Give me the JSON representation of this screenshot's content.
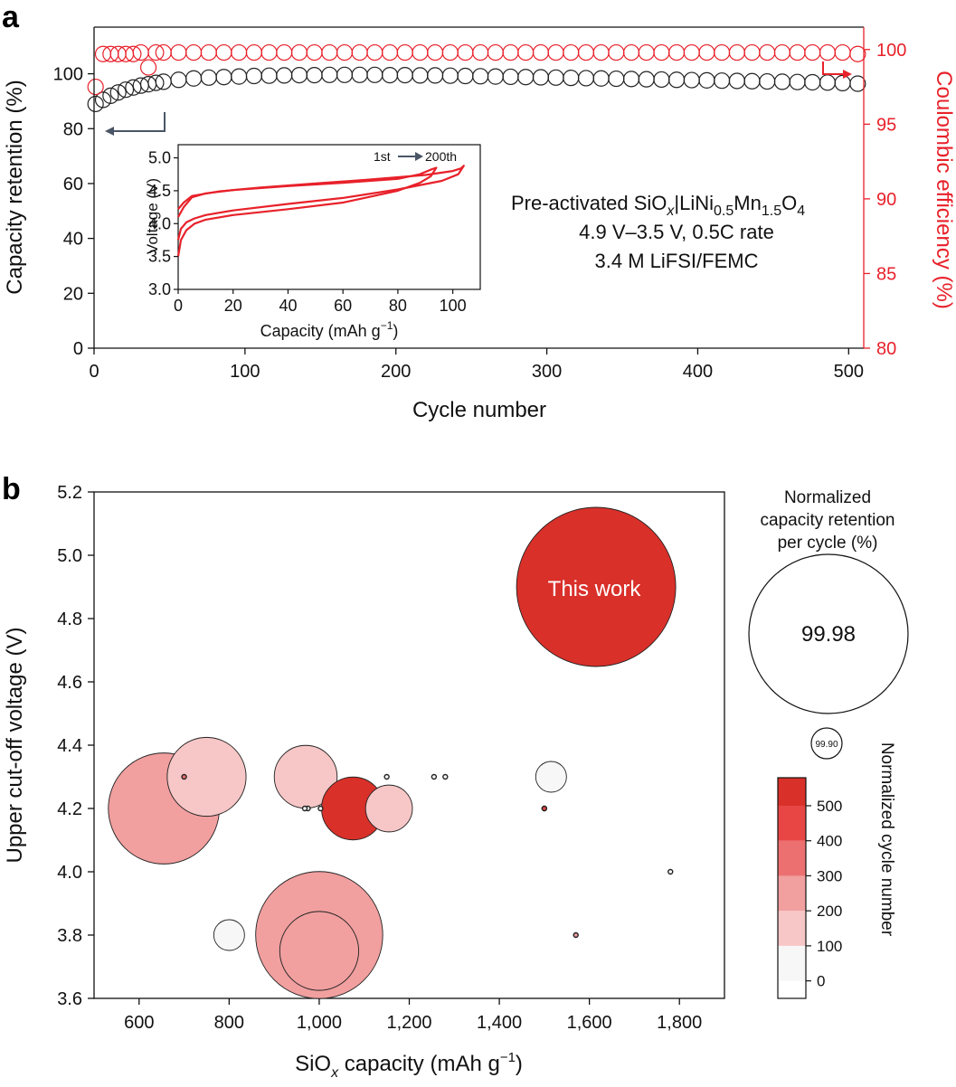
{
  "chart_data": [
    {
      "panel_label": "a",
      "type": "scatter",
      "xlabel": "Cycle number",
      "ylabel": "Capacity retention (%)",
      "y2label": "Coulombic efficiency (%)",
      "xlim": [
        0,
        510
      ],
      "ylim": [
        0,
        117
      ],
      "y2lim": [
        80,
        101.5
      ],
      "xticks": [
        "0",
        "100",
        "200",
        "300",
        "400",
        "500"
      ],
      "yticks": [
        "0",
        "20",
        "40",
        "60",
        "80",
        "100"
      ],
      "y2ticks": [
        "80",
        "85",
        "90",
        "95",
        "100"
      ],
      "annotation_lines": [
        "Pre-activated SiO",
        "x",
        "|LiNi",
        "0.5",
        "Mn",
        "1.5",
        "O",
        "4",
        "4.9 V–3.5 V, 0.5C rate",
        "3.4 M LiFSI/FEMC"
      ],
      "series": [
        {
          "axis": "left",
          "color": "#222222",
          "x": [
            1,
            6,
            11,
            16,
            21,
            26,
            31,
            36,
            41,
            46,
            56,
            66,
            76,
            86,
            96,
            106,
            116,
            126,
            136,
            146,
            156,
            166,
            176,
            186,
            196,
            206,
            216,
            226,
            236,
            246,
            256,
            266,
            276,
            286,
            296,
            306,
            316,
            326,
            336,
            346,
            356,
            366,
            376,
            386,
            396,
            406,
            416,
            426,
            436,
            446,
            456,
            466,
            476,
            486,
            496,
            506
          ],
          "y": [
            89,
            90.5,
            92,
            93.2,
            94.2,
            95,
            95.7,
            96.2,
            96.7,
            97.1,
            97.8,
            98.3,
            98.6,
            98.8,
            99,
            99.2,
            99.3,
            99.4,
            99.5,
            99.5,
            99.6,
            99.6,
            99.6,
            99.6,
            99.5,
            99.5,
            99.4,
            99.4,
            99.3,
            99.2,
            99.1,
            99,
            98.9,
            98.8,
            98.7,
            98.6,
            98.5,
            98.4,
            98.3,
            98.2,
            98.1,
            98,
            97.9,
            97.8,
            97.7,
            97.6,
            97.5,
            97.4,
            97.3,
            97.2,
            97.1,
            97,
            96.9,
            96.8,
            96.6,
            96.4
          ]
        },
        {
          "axis": "right",
          "color": "#e8212a",
          "x": [
            1,
            6,
            11,
            16,
            21,
            26,
            31,
            36,
            41,
            46,
            56,
            66,
            76,
            86,
            96,
            106,
            116,
            126,
            136,
            146,
            156,
            166,
            176,
            186,
            196,
            206,
            216,
            226,
            236,
            246,
            256,
            266,
            276,
            286,
            296,
            306,
            316,
            326,
            336,
            346,
            356,
            366,
            376,
            386,
            396,
            406,
            416,
            426,
            436,
            446,
            456,
            466,
            476,
            486,
            496,
            506
          ],
          "y": [
            97.5,
            99.7,
            99.7,
            99.7,
            99.7,
            99.7,
            99.8,
            98.8,
            99.8,
            99.8,
            99.8,
            99.8,
            99.8,
            99.8,
            99.8,
            99.8,
            99.8,
            99.8,
            99.8,
            99.8,
            99.8,
            99.8,
            99.8,
            99.8,
            99.8,
            99.8,
            99.8,
            99.8,
            99.8,
            99.8,
            99.8,
            99.8,
            99.8,
            99.8,
            99.8,
            99.8,
            99.8,
            99.8,
            99.8,
            99.8,
            99.8,
            99.8,
            99.8,
            99.8,
            99.8,
            99.8,
            99.8,
            99.8,
            99.8,
            99.8,
            99.8,
            99.8,
            99.8,
            99.8,
            99.8,
            99.7
          ]
        }
      ],
      "inset": {
        "type": "line",
        "xlabel": "Capacity (mAh g",
        "xlabel_sup": "−1",
        "xlabel_end": ")",
        "ylabel": "Voltage (V)",
        "xlim": [
          0,
          110
        ],
        "ylim": [
          3.0,
          5.2
        ],
        "xticks": [
          "0",
          "20",
          "40",
          "60",
          "80",
          "100"
        ],
        "yticks": [
          "3.0",
          "3.5",
          "4.0",
          "4.5",
          "5.0"
        ],
        "legend_start": "1st",
        "legend_end": "200th",
        "color": "#e8212a",
        "curves": [
          {
            "charge_x": [
              0,
              1,
              3,
              6,
              10,
              20,
              40,
              60,
              80,
              88,
              92,
              94
            ],
            "charge_y": [
              3.5,
              3.75,
              3.9,
              4.0,
              4.06,
              4.13,
              4.22,
              4.32,
              4.5,
              4.62,
              4.72,
              4.85
            ],
            "discharge_x": [
              94,
              92,
              88,
              80,
              60,
              40,
              20,
              10,
              5,
              2,
              0
            ],
            "discharge_y": [
              4.85,
              4.82,
              4.75,
              4.68,
              4.62,
              4.57,
              4.51,
              4.46,
              4.4,
              4.25,
              4.1
            ]
          },
          {
            "charge_x": [
              0,
              1,
              3,
              6,
              10,
              20,
              40,
              60,
              80,
              96,
              102,
              104
            ],
            "charge_y": [
              3.75,
              3.92,
              4.02,
              4.08,
              4.13,
              4.2,
              4.3,
              4.39,
              4.52,
              4.65,
              4.75,
              4.88
            ],
            "discharge_x": [
              104,
              103,
              100,
              90,
              70,
              50,
              30,
              15,
              5,
              2,
              0
            ],
            "discharge_y": [
              4.88,
              4.84,
              4.8,
              4.74,
              4.67,
              4.61,
              4.55,
              4.49,
              4.42,
              4.32,
              4.22
            ]
          }
        ]
      }
    },
    {
      "panel_label": "b",
      "type": "scatter",
      "xlabel": "SiO",
      "xlabel_sub": "x",
      "xlabel_end": " capacity (mAh g",
      "xlabel_sup": "−1",
      "xlabel_close": ")",
      "ylabel": "Upper cut-off voltage (V)",
      "xlim": [
        500,
        1900
      ],
      "ylim": [
        3.6,
        5.2
      ],
      "xticks": [
        "600",
        "800",
        "1,000",
        "1,200",
        "1,400",
        "1,600",
        "1,800"
      ],
      "yticks": [
        "3.6",
        "3.8",
        "4.0",
        "4.2",
        "4.4",
        "4.6",
        "4.8",
        "5.0",
        "5.2"
      ],
      "highlight_label": "This work",
      "points": [
        {
          "x": 1615,
          "y": 4.9,
          "retention": 99.98,
          "norm_cycles": 520
        },
        {
          "x": 655,
          "y": 4.2,
          "retention": 99.95,
          "norm_cycles": 220
        },
        {
          "x": 750,
          "y": 4.3,
          "retention": 99.93,
          "norm_cycles": 150
        },
        {
          "x": 700,
          "y": 4.3,
          "retention": 99.5,
          "norm_cycles": 300
        },
        {
          "x": 970,
          "y": 4.3,
          "retention": 99.92,
          "norm_cycles": 120
        },
        {
          "x": 1075,
          "y": 4.2,
          "retention": 99.92,
          "norm_cycles": 520
        },
        {
          "x": 1155,
          "y": 4.2,
          "retention": 99.91,
          "norm_cycles": 150
        },
        {
          "x": 1000,
          "y": 3.8,
          "retention": 99.96,
          "norm_cycles": 220
        },
        {
          "x": 1000,
          "y": 3.75,
          "retention": 99.93,
          "norm_cycles": 250
        },
        {
          "x": 800,
          "y": 3.8,
          "retention": 99.9,
          "norm_cycles": 40
        },
        {
          "x": 1515,
          "y": 4.3,
          "retention": 99.9,
          "norm_cycles": 40
        },
        {
          "x": 1500,
          "y": 4.2,
          "retention": 99.5,
          "norm_cycles": 300
        },
        {
          "x": 1500,
          "y": 4.2,
          "retention": 99.0,
          "norm_cycles": 400
        },
        {
          "x": 1570,
          "y": 3.8,
          "retention": 99.5,
          "norm_cycles": 200
        },
        {
          "x": 1150,
          "y": 4.3,
          "retention": 99.3,
          "norm_cycles": 30
        },
        {
          "x": 1280,
          "y": 4.3,
          "retention": 99.0,
          "norm_cycles": 30
        },
        {
          "x": 1255,
          "y": 4.3,
          "retention": 98.5,
          "norm_cycles": 30
        },
        {
          "x": 975,
          "y": 4.2,
          "retention": 98.5,
          "norm_cycles": 30
        },
        {
          "x": 968,
          "y": 4.2,
          "retention": 98.5,
          "norm_cycles": 30
        },
        {
          "x": 1003,
          "y": 4.2,
          "retention": 98.0,
          "norm_cycles": 30
        },
        {
          "x": 1780,
          "y": 4.0,
          "retention": 98.5,
          "norm_cycles": 30
        }
      ],
      "size_legend": {
        "title_lines": [
          "Normalized",
          "capacity retention",
          "per cycle (%)"
        ],
        "items": [
          {
            "label": "99.98",
            "retention": 99.98
          },
          {
            "label": "99.90",
            "retention": 99.9
          }
        ]
      },
      "colorbar": {
        "label": "Normalized cycle number",
        "ticks": [
          "0",
          "100",
          "200",
          "300",
          "400",
          "500"
        ],
        "bins": [
          {
            "from": -50,
            "to": 0,
            "color": "#ffffff"
          },
          {
            "from": 0,
            "to": 100,
            "color": "#f7f7f7"
          },
          {
            "from": 100,
            "to": 200,
            "color": "#f7c6c6"
          },
          {
            "from": 200,
            "to": 300,
            "color": "#f19f9f"
          },
          {
            "from": 300,
            "to": 400,
            "color": "#ec7070"
          },
          {
            "from": 400,
            "to": 500,
            "color": "#e84545"
          },
          {
            "from": 500,
            "to": 580,
            "color": "#d9302a"
          }
        ]
      }
    }
  ]
}
